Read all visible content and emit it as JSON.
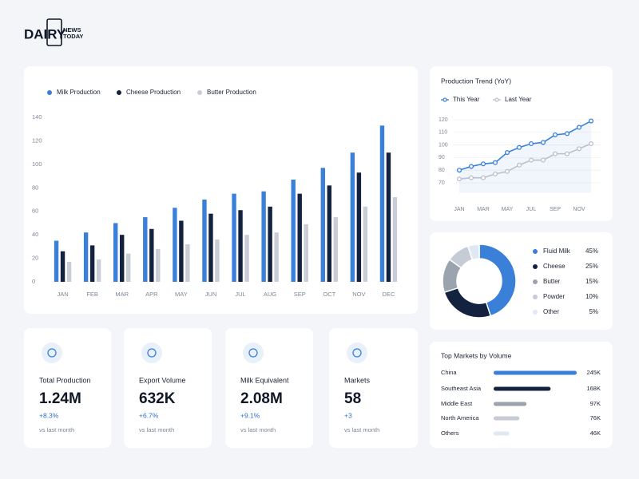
{
  "brand": {
    "name": "DAIRY",
    "line1": "NEWS",
    "line2": "TODAY"
  },
  "chart_data": [
    {
      "type": "bar",
      "categories": [
        "JAN",
        "FEB",
        "MAR",
        "APR",
        "MAY",
        "JUN",
        "JUL",
        "AUG",
        "SEP",
        "OCT",
        "NOV",
        "DEC"
      ],
      "series": [
        {
          "name": "Milk Production",
          "color": "#3a80d9",
          "values": [
            35,
            42,
            50,
            55,
            63,
            70,
            75,
            77,
            87,
            97,
            110,
            133
          ]
        },
        {
          "name": "Cheese Production",
          "color": "#13233f",
          "values": [
            26,
            31,
            40,
            45,
            52,
            58,
            61,
            64,
            75,
            82,
            93,
            110
          ]
        },
        {
          "name": "Butter Production",
          "color": "#c8cdd6",
          "values": [
            17,
            19,
            24,
            28,
            32,
            36,
            40,
            42,
            49,
            55,
            64,
            72
          ]
        }
      ],
      "ylim": [
        0,
        140
      ],
      "yticks": [
        0,
        20,
        40,
        60,
        80,
        100,
        120,
        140
      ]
    },
    {
      "type": "line",
      "title": "Production Trend (YoY)",
      "categories": [
        "JAN",
        null,
        "MAR",
        null,
        "MAY",
        null,
        "JUL",
        null,
        "SEP",
        null,
        "NOV",
        null
      ],
      "series": [
        {
          "name": "This Year",
          "color": "#3a80d9",
          "values": [
            80,
            83,
            85,
            86,
            94,
            98,
            101,
            102,
            108,
            109,
            114,
            119
          ]
        },
        {
          "name": "Last Year",
          "color": "#b9c0cb",
          "values": [
            73,
            74,
            74,
            77,
            79,
            84,
            88,
            88,
            93,
            93,
            97,
            101
          ]
        }
      ],
      "ylim": [
        62,
        126
      ],
      "yticks": [
        70,
        80,
        90,
        100,
        110,
        120
      ]
    },
    {
      "type": "pie",
      "categories": [
        "Fluid Milk",
        "Cheese",
        "Butter",
        "Powder",
        "Other"
      ],
      "values": [
        45,
        25,
        15,
        10,
        5
      ],
      "value_labels": [
        "45%",
        "25%",
        "15%",
        "10%",
        "5%"
      ],
      "colors": [
        "#3a80d9",
        "#13233f",
        "#9aa3ae",
        "#c6ccd5",
        "#dfe8f3"
      ]
    },
    {
      "type": "hbar",
      "title": "Top Markets by Volume",
      "categories": [
        "China",
        "Southeast Asia",
        "Middle East",
        "North America",
        "Others"
      ],
      "values": [
        245000,
        168000,
        97000,
        76000,
        46000
      ],
      "value_labels": [
        "245K",
        "168K",
        "97K",
        "76K",
        "46K"
      ],
      "colors": [
        "#3a80d9",
        "#13233f",
        "#9aa3ae",
        "#c6ccd5",
        "#dfe8f3"
      ],
      "xlim": [
        0,
        245000
      ]
    }
  ],
  "kpis": [
    {
      "title": "Total Production",
      "value": "1.24M",
      "change": "+8.3%",
      "note": "vs last month"
    },
    {
      "title": "Export Volume",
      "value": "632K",
      "change": "+6.7%",
      "note": "vs last month"
    },
    {
      "title": "Milk Equivalent",
      "value": "2.08M",
      "change": "+9.1%",
      "note": "vs last month"
    },
    {
      "title": "Markets",
      "value": "58",
      "change": "+3",
      "note": "vs last month"
    }
  ]
}
